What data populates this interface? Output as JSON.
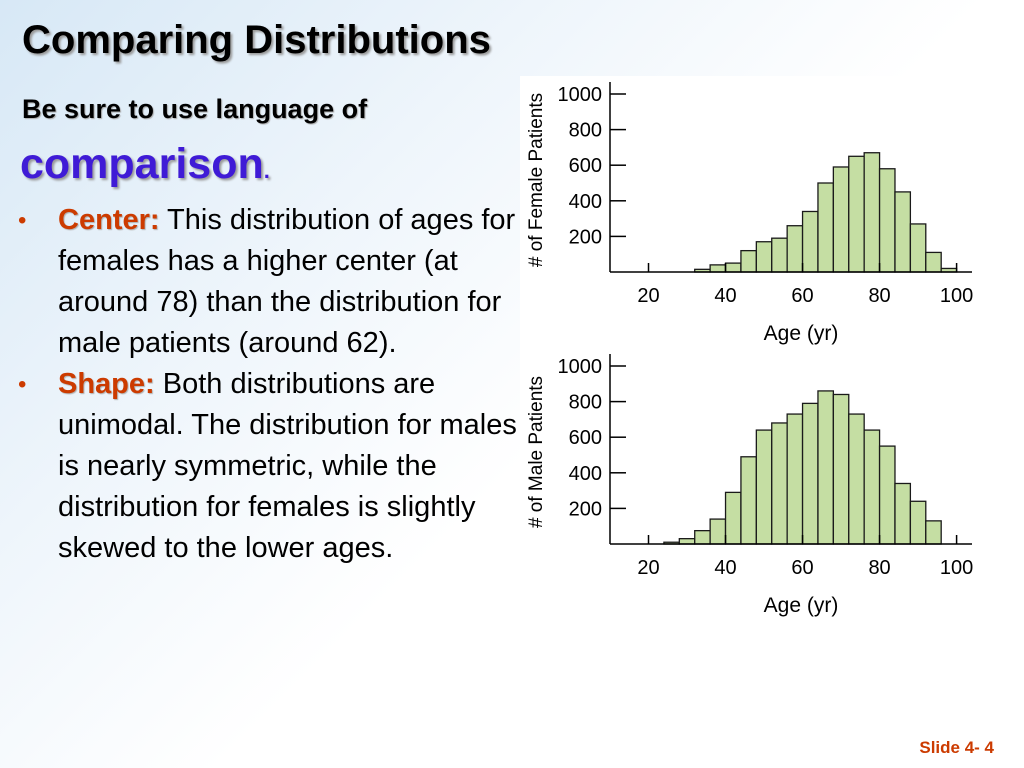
{
  "slide": {
    "title": "Comparing Distributions",
    "subtitle": "Be sure to use language of",
    "emphasis": "comparison",
    "emphasis_punct": ".",
    "bullets": [
      {
        "keyword": "Center:",
        "text": " This distribution of ages for females has a higher center (at around 78) than the distribution for male patients (around 62)."
      },
      {
        "keyword": "Shape:",
        "text": " Both distributions are unimodal.  The distribution for males is nearly symmetric, while the distribution for females is slightly skewed to the lower ages."
      }
    ],
    "slide_number": "Slide 4- 4",
    "colors": {
      "keyword": "#cc3b00",
      "emphasis": "#3f1bd6",
      "bar_fill": "#c5dea3",
      "bar_stroke": "#1a1a1a"
    }
  },
  "chart_data": [
    {
      "type": "bar",
      "xlabel": "Age (yr)",
      "ylabel": "# of Female Patients",
      "xlim": [
        10,
        104
      ],
      "ylim": [
        0,
        1000
      ],
      "x_ticks": [
        20,
        40,
        60,
        80,
        100
      ],
      "y_ticks": [
        200,
        400,
        600,
        800,
        1000
      ],
      "bin_width": 4,
      "bin_starts": [
        32,
        36,
        40,
        44,
        48,
        52,
        56,
        60,
        64,
        68,
        72,
        76,
        80,
        84,
        88,
        92,
        96
      ],
      "values": [
        15,
        40,
        50,
        120,
        170,
        190,
        260,
        340,
        500,
        590,
        650,
        670,
        580,
        450,
        270,
        110,
        20
      ]
    },
    {
      "type": "bar",
      "xlabel": "Age (yr)",
      "ylabel": "# of Male Patients",
      "xlim": [
        10,
        104
      ],
      "ylim": [
        0,
        1000
      ],
      "x_ticks": [
        20,
        40,
        60,
        80,
        100
      ],
      "y_ticks": [
        200,
        400,
        600,
        800,
        1000
      ],
      "bin_width": 4,
      "bin_starts": [
        24,
        28,
        32,
        36,
        40,
        44,
        48,
        52,
        56,
        60,
        64,
        68,
        72,
        76,
        80,
        84,
        88,
        92
      ],
      "values": [
        10,
        30,
        75,
        140,
        290,
        490,
        640,
        680,
        730,
        790,
        860,
        840,
        730,
        640,
        550,
        340,
        240,
        130
      ]
    }
  ]
}
